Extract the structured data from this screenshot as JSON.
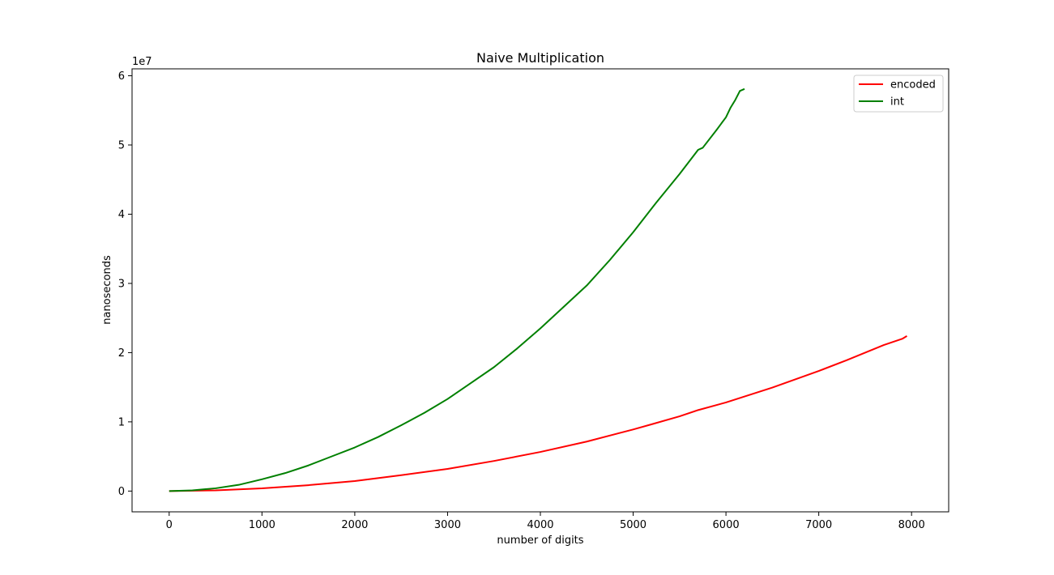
{
  "chart_data": {
    "type": "line",
    "title": "Naive Multiplication",
    "xlabel": "number of digits",
    "ylabel": "nanoseconds",
    "y_offset_label": "1e7",
    "xlim": [
      -400,
      8400
    ],
    "ylim": [
      -3000000.0,
      61000000.0
    ],
    "x_ticks": [
      0,
      1000,
      2000,
      3000,
      4000,
      5000,
      6000,
      7000,
      8000
    ],
    "x_tick_labels": [
      "0",
      "1000",
      "2000",
      "3000",
      "4000",
      "5000",
      "6000",
      "7000",
      "8000"
    ],
    "y_ticks": [
      0,
      10000000,
      20000000,
      30000000,
      40000000,
      50000000,
      60000000
    ],
    "y_tick_labels": [
      "0",
      "1",
      "2",
      "3",
      "4",
      "5",
      "6"
    ],
    "grid": false,
    "legend_position": "top-right",
    "series": [
      {
        "name": "encoded",
        "color": "#ff0000",
        "x": [
          0,
          500,
          1000,
          1500,
          2000,
          2500,
          3000,
          3500,
          4000,
          4500,
          5000,
          5200,
          5500,
          5700,
          6000,
          6500,
          7000,
          7300,
          7500,
          7700,
          7900,
          7950
        ],
        "y": [
          0,
          100000,
          400000,
          850000,
          1450000,
          2300000,
          3200000,
          4350000,
          5650000,
          7150000,
          8900000,
          9650000,
          10800000,
          11700000,
          12800000,
          14950000,
          17350000,
          18900000,
          20000000,
          21100000,
          22000000,
          22400000
        ]
      },
      {
        "name": "int",
        "color": "#008000",
        "x": [
          0,
          250,
          500,
          750,
          1000,
          1250,
          1500,
          1750,
          2000,
          2250,
          2500,
          2750,
          3000,
          3250,
          3500,
          3750,
          4000,
          4250,
          4500,
          4750,
          5000,
          5250,
          5500,
          5700,
          5750,
          5900,
          6000,
          6050,
          6100,
          6150,
          6200
        ],
        "y": [
          0,
          100000,
          400000,
          900000,
          1700000,
          2600000,
          3700000,
          5000000,
          6300000,
          7800000,
          9500000,
          11300000,
          13300000,
          15600000,
          17900000,
          20600000,
          23500000,
          26600000,
          29700000,
          33400000,
          37400000,
          41700000,
          45800000,
          49300000,
          49600000,
          52200000,
          54000000,
          55400000,
          56500000,
          57800000,
          58100000
        ]
      }
    ]
  }
}
